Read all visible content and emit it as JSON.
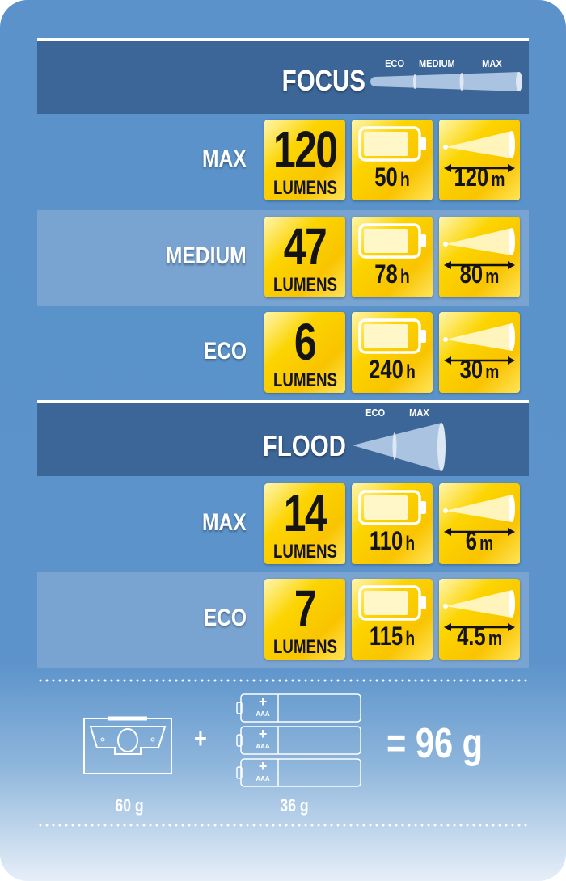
{
  "sections": [
    {
      "title": "FOCUS",
      "beam_labels": [
        "ECO",
        "MEDIUM",
        "MAX"
      ],
      "rows": [
        {
          "mode": "MAX",
          "lumens": "120",
          "lumens_unit": "LUMENS",
          "runtime": "50",
          "runtime_unit": "h",
          "distance": "120",
          "distance_unit": "m"
        },
        {
          "mode": "MEDIUM",
          "lumens": "47",
          "lumens_unit": "LUMENS",
          "runtime": "78",
          "runtime_unit": "h",
          "distance": "80",
          "distance_unit": "m"
        },
        {
          "mode": "ECO",
          "lumens": "6",
          "lumens_unit": "LUMENS",
          "runtime": "240",
          "runtime_unit": "h",
          "distance": "30",
          "distance_unit": "m"
        }
      ]
    },
    {
      "title": "FLOOD",
      "beam_labels": [
        "ECO",
        "MAX"
      ],
      "rows": [
        {
          "mode": "MAX",
          "lumens": "14",
          "lumens_unit": "LUMENS",
          "runtime": "110",
          "runtime_unit": "h",
          "distance": "6",
          "distance_unit": "m"
        },
        {
          "mode": "ECO",
          "lumens": "7",
          "lumens_unit": "LUMENS",
          "runtime": "115",
          "runtime_unit": "h",
          "distance": "4.5",
          "distance_unit": "m"
        }
      ]
    }
  ],
  "weight": {
    "lamp": "60 g",
    "plus": "+",
    "battery_type": "AAA",
    "battery_plus": "+",
    "batteries": "36 g",
    "total": "= 96 g"
  },
  "colors": {
    "background": "#5b93ca",
    "header": "#3b6697",
    "band": "#79a4d2",
    "tile": "#fcd400"
  }
}
